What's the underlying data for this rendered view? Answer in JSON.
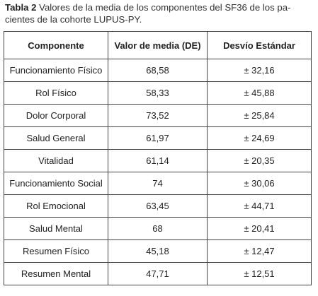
{
  "caption": {
    "label": "Tabla 2",
    "text": "Valores de la media de los componentes del SF36 de los pa-cientes de la cohorte LUPUS-PY."
  },
  "table": {
    "headers": [
      "Componente",
      "Valor de media (DE)",
      "Desvío Estándar"
    ],
    "rows": [
      [
        "Funcionamiento Físico",
        "68,58",
        "± 32,16"
      ],
      [
        "Rol Físico",
        "58,33",
        "± 45,88"
      ],
      [
        "Dolor Corporal",
        "73,52",
        "± 25,84"
      ],
      [
        "Salud General",
        "61,97",
        "± 24,69"
      ],
      [
        "Vitalidad",
        "61,14",
        "± 20,35"
      ],
      [
        "Funcionamiento Social",
        "74",
        "± 30,06"
      ],
      [
        "Rol Emocional",
        "63,45",
        "± 44,71"
      ],
      [
        "Salud Mental",
        "68",
        "± 20,41"
      ],
      [
        "Resumen Físico",
        "45,18",
        "± 12,47"
      ],
      [
        "Resumen Mental",
        "47,71",
        "± 12,51"
      ]
    ]
  }
}
